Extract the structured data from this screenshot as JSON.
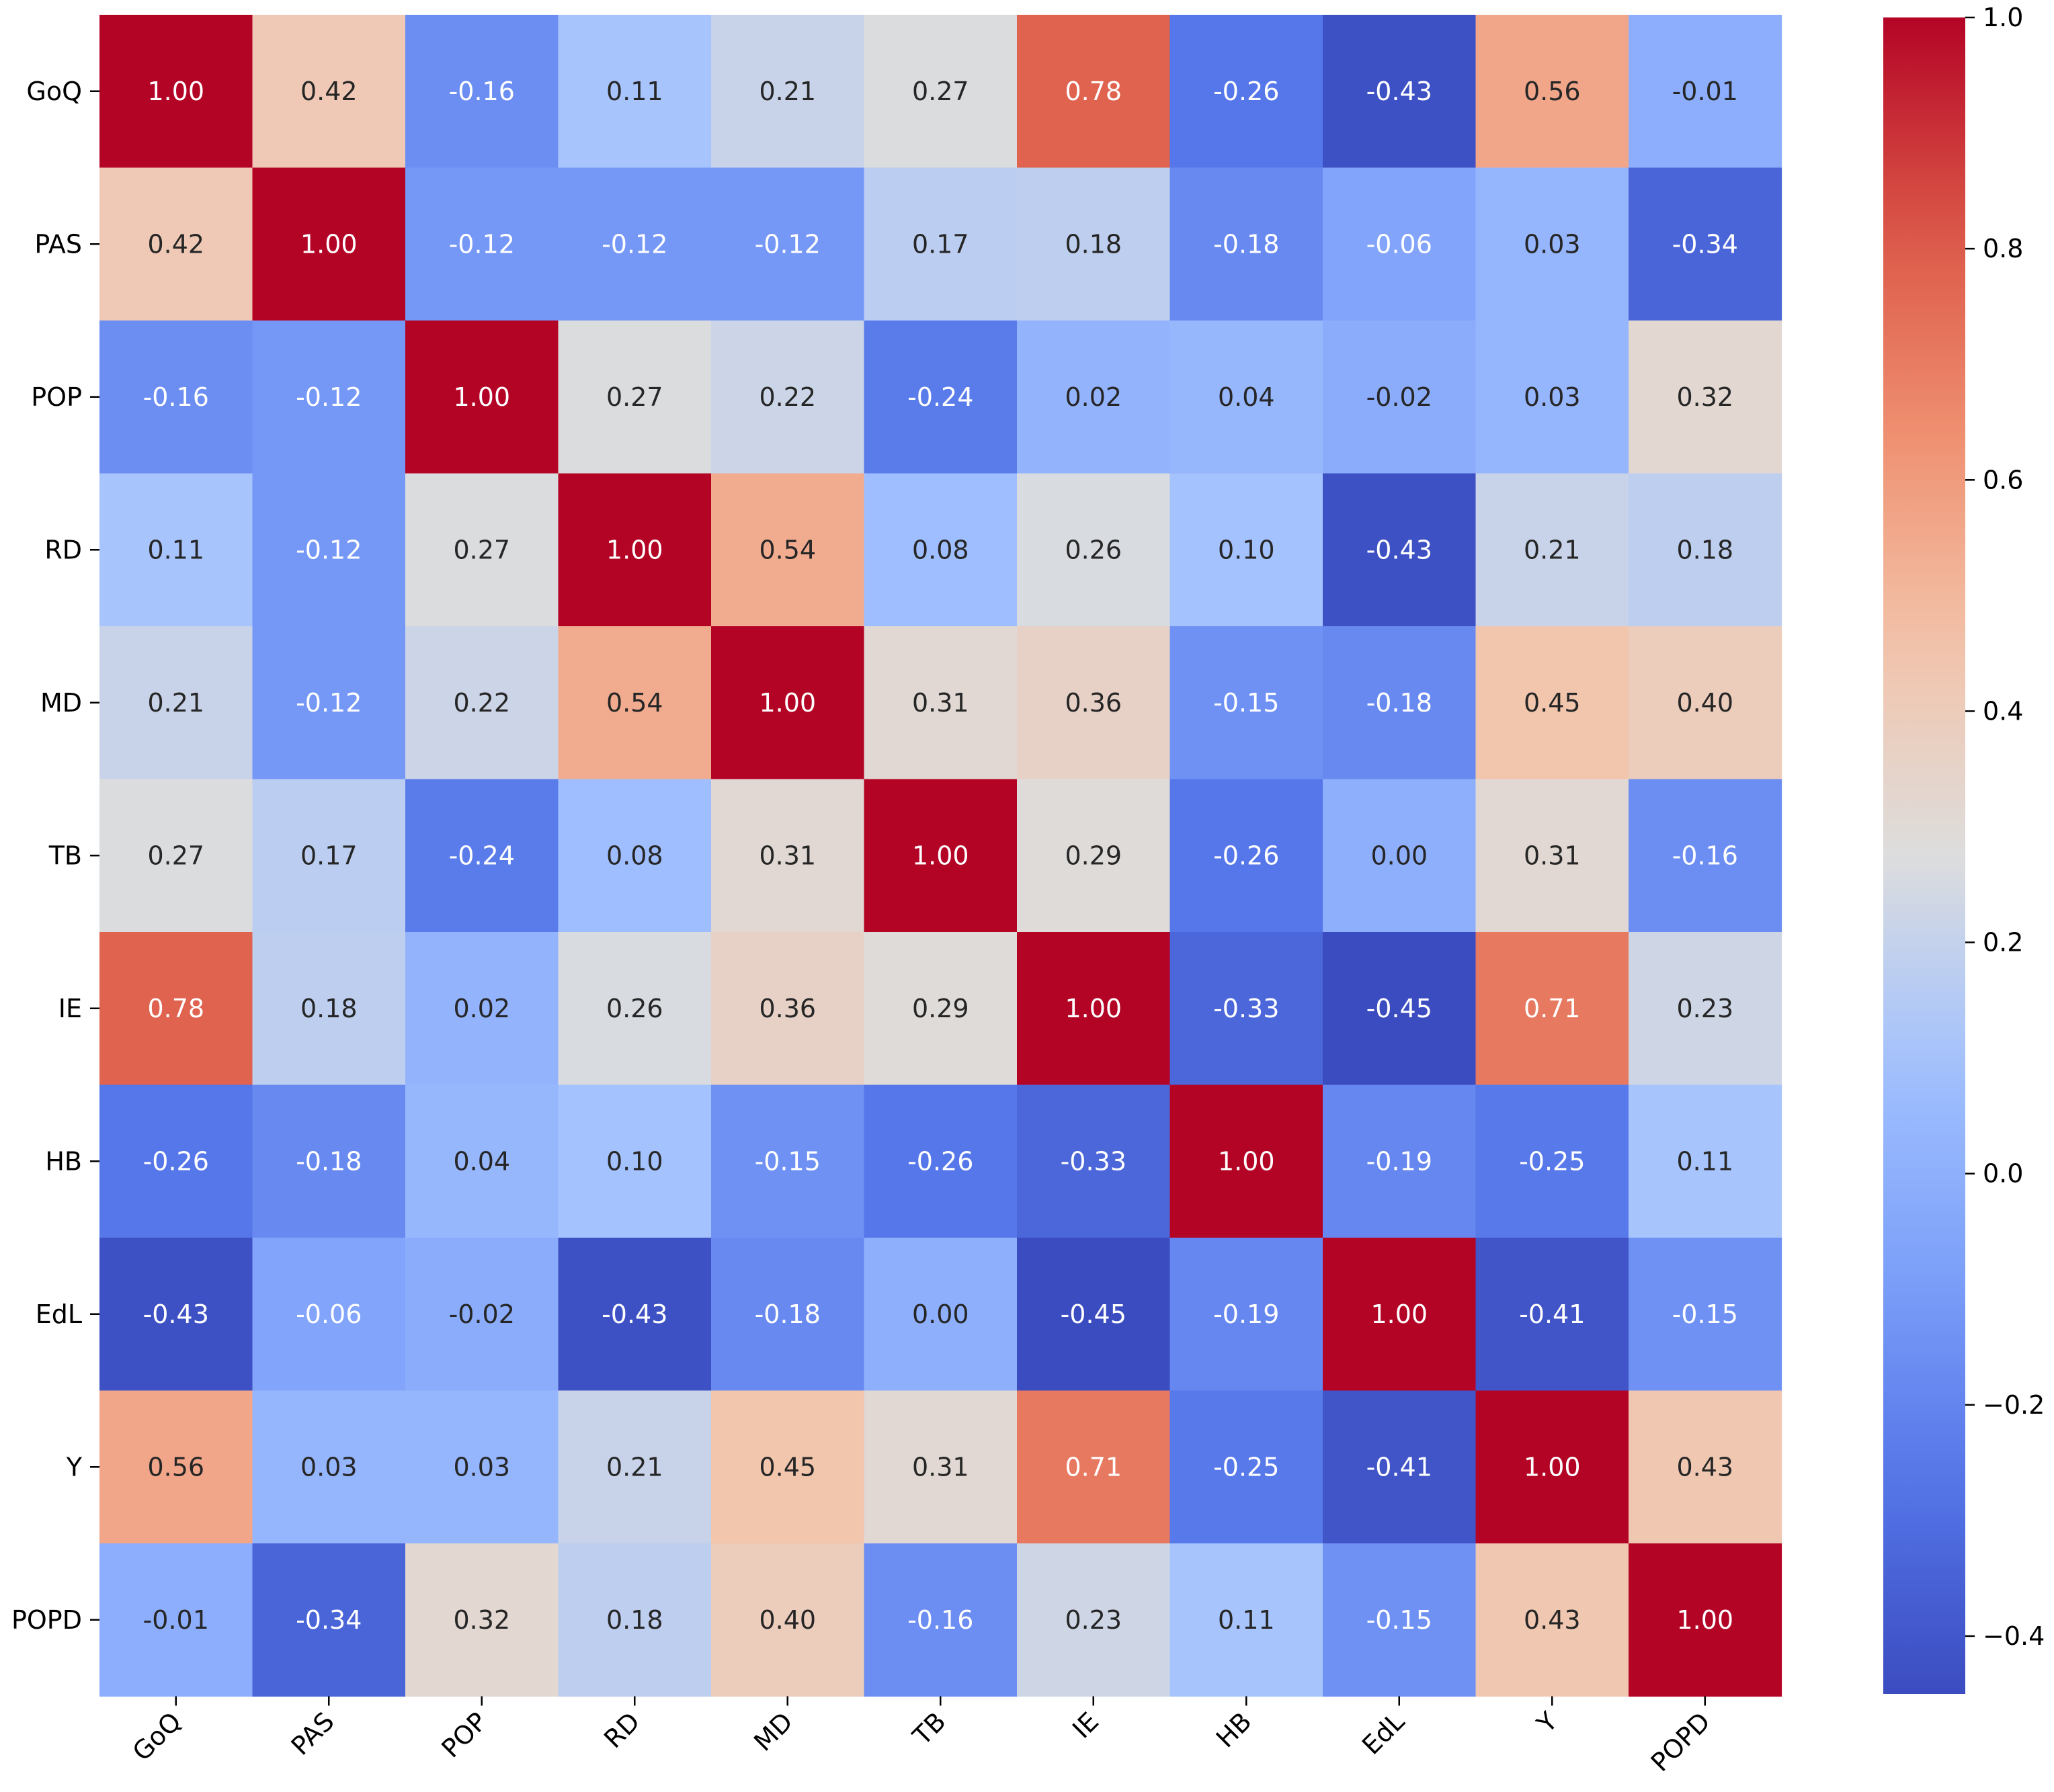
{
  "chart_data": {
    "type": "heatmap",
    "title": "",
    "xlabel": "",
    "ylabel": "",
    "colormap": "coolwarm",
    "value_range": [
      -0.45,
      1.0
    ],
    "x_categories": [
      "GoQ",
      "PAS",
      "POP",
      "RD",
      "MD",
      "TB",
      "IE",
      "HB",
      "EdL",
      "Y",
      "POPD"
    ],
    "y_categories": [
      "GoQ",
      "PAS",
      "POP",
      "RD",
      "MD",
      "TB",
      "IE",
      "HB",
      "EdL",
      "Y",
      "POPD"
    ],
    "matrix": [
      [
        1.0,
        0.42,
        -0.16,
        0.11,
        0.21,
        0.27,
        0.78,
        -0.26,
        -0.43,
        0.56,
        -0.01
      ],
      [
        0.42,
        1.0,
        -0.12,
        -0.12,
        -0.12,
        0.17,
        0.18,
        -0.18,
        -0.06,
        0.03,
        -0.34
      ],
      [
        -0.16,
        -0.12,
        1.0,
        0.27,
        0.22,
        -0.24,
        0.02,
        0.04,
        -0.02,
        0.03,
        0.32
      ],
      [
        0.11,
        -0.12,
        0.27,
        1.0,
        0.54,
        0.08,
        0.26,
        0.1,
        -0.43,
        0.21,
        0.18
      ],
      [
        0.21,
        -0.12,
        0.22,
        0.54,
        1.0,
        0.31,
        0.36,
        -0.15,
        -0.18,
        0.45,
        0.4
      ],
      [
        0.27,
        0.17,
        -0.24,
        0.08,
        0.31,
        1.0,
        0.29,
        -0.26,
        0.0,
        0.31,
        -0.16
      ],
      [
        0.78,
        0.18,
        0.02,
        0.26,
        0.36,
        0.29,
        1.0,
        -0.33,
        -0.45,
        0.71,
        0.23
      ],
      [
        -0.26,
        -0.18,
        0.04,
        0.1,
        -0.15,
        -0.26,
        -0.33,
        1.0,
        -0.19,
        -0.25,
        0.11
      ],
      [
        -0.43,
        -0.06,
        -0.02,
        -0.43,
        -0.18,
        0.0,
        -0.45,
        -0.19,
        1.0,
        -0.41,
        -0.15
      ],
      [
        0.56,
        0.03,
        0.03,
        0.21,
        0.45,
        0.31,
        0.71,
        -0.25,
        -0.41,
        1.0,
        0.43
      ],
      [
        -0.01,
        -0.34,
        0.32,
        0.18,
        0.4,
        -0.16,
        0.23,
        0.11,
        -0.15,
        0.43,
        1.0
      ]
    ],
    "annotations": [
      [
        "1.00",
        "0.42",
        "-0.16",
        "0.11",
        "0.21",
        "0.27",
        "0.78",
        "-0.26",
        "-0.43",
        "0.56",
        "-0.01"
      ],
      [
        "0.42",
        "1.00",
        "-0.12",
        "-0.12",
        "-0.12",
        "0.17",
        "0.18",
        "-0.18",
        "-0.06",
        "0.03",
        "-0.34"
      ],
      [
        "-0.16",
        "-0.12",
        "1.00",
        "0.27",
        "0.22",
        "-0.24",
        "0.02",
        "0.04",
        "-0.02",
        "0.03",
        "0.32"
      ],
      [
        "0.11",
        "-0.12",
        "0.27",
        "1.00",
        "0.54",
        "0.08",
        "0.26",
        "0.10",
        "-0.43",
        "0.21",
        "0.18"
      ],
      [
        "0.21",
        "-0.12",
        "0.22",
        "0.54",
        "1.00",
        "0.31",
        "0.36",
        "-0.15",
        "-0.18",
        "0.45",
        "0.40"
      ],
      [
        "0.27",
        "0.17",
        "-0.24",
        "0.08",
        "0.31",
        "1.00",
        "0.29",
        "-0.26",
        "0.00",
        "0.31",
        "-0.16"
      ],
      [
        "0.78",
        "0.18",
        "0.02",
        "0.26",
        "0.36",
        "0.29",
        "1.00",
        "-0.33",
        "-0.45",
        "0.71",
        "0.23"
      ],
      [
        "-0.26",
        "-0.18",
        "0.04",
        "0.10",
        "-0.15",
        "-0.26",
        "-0.33",
        "1.00",
        "-0.19",
        "-0.25",
        "0.11"
      ],
      [
        "-0.43",
        "-0.06",
        "-0.02",
        "-0.43",
        "-0.18",
        "0.00",
        "-0.45",
        "-0.19",
        "1.00",
        "-0.41",
        "-0.15"
      ],
      [
        "0.56",
        "0.03",
        "0.03",
        "0.21",
        "0.45",
        "0.31",
        "0.71",
        "-0.25",
        "-0.41",
        "1.00",
        "0.43"
      ],
      [
        "-0.01",
        "-0.34",
        "0.32",
        "0.18",
        "0.40",
        "-0.16",
        "0.23",
        "0.11",
        "-0.15",
        "0.43",
        "1.00"
      ]
    ],
    "colorbar": {
      "ticks": [
        1.0,
        0.8,
        0.6,
        0.4,
        0.2,
        0.0,
        -0.2,
        -0.4
      ],
      "tick_labels": [
        "1.0",
        "0.8",
        "0.6",
        "0.4",
        "0.2",
        "0.0",
        "−0.2",
        "−0.4"
      ]
    }
  }
}
